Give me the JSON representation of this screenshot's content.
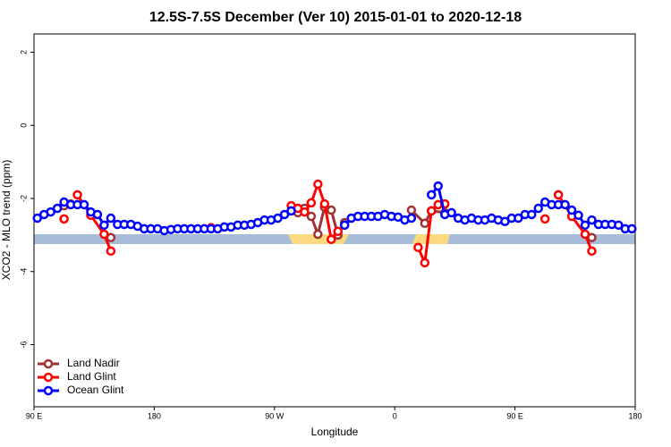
{
  "chart_data": {
    "type": "line",
    "title": "12.5S-7.5S December (Ver 10)   2015-01-01 to 2020-12-18",
    "xlabel": "Longitude",
    "ylabel": "XCO2 - MLO trend (ppm)",
    "xlim": [
      90,
      540
    ],
    "ylim": [
      -7.7,
      2.5
    ],
    "xticks": [
      {
        "value": 90,
        "label": "90 E"
      },
      180,
      {
        "value": 270,
        "label": "90 W"
      },
      {
        "value": 360,
        "label": "0"
      },
      {
        "value": 450,
        "label": "90 E"
      },
      {
        "value": 540,
        "label": "180"
      }
    ],
    "yticks": [
      2,
      0,
      -2,
      -4,
      -6
    ],
    "legend": "bottom-left",
    "series": [
      {
        "name": "Land Nadir",
        "color": "#a03232",
        "x": [
          112.5,
          117.5,
          132.5,
          147.5,
          222.5,
          287.5,
          292.5,
          297.5,
          302.5,
          307.5,
          312.5,
          317.5,
          322.5,
          352.5,
          372.5,
          382.5,
          387.5,
          397.5,
          452.5,
          507.5
        ],
        "values": [
          -2.2,
          -2.15,
          null,
          -3.07,
          null,
          -2.39,
          -2.27,
          -2.49,
          -2.98,
          -2.24,
          -2.32,
          -3.0,
          -2.66,
          null,
          -2.32,
          -2.68,
          -2.34,
          -2.39,
          null,
          -3.07
        ]
      },
      {
        "name": "Land Glint",
        "color": "#ff0000",
        "x": [
          112.5,
          117.5,
          122.5,
          132.5,
          142.5,
          147.5,
          182.5,
          222.5,
          252.5,
          282.5,
          287.5,
          292.5,
          297.5,
          302.5,
          307.5,
          312.5,
          317.5,
          322.5,
          352.5,
          377.5,
          382.5,
          387.5,
          392.5,
          397.5,
          432.5,
          472.5,
          477.5,
          482.5,
          492.5,
          502.5,
          507.5
        ],
        "values": [
          -2.56,
          null,
          -1.9,
          -2.46,
          -2.98,
          -3.44,
          null,
          -2.8,
          null,
          -2.2,
          -2.27,
          -2.37,
          -2.12,
          -1.61,
          -2.15,
          -3.12,
          -2.9,
          -2.73,
          null,
          -3.34,
          -3.76,
          -2.34,
          -2.17,
          -2.15,
          null,
          -2.56,
          null,
          -1.9,
          -2.49,
          -2.98,
          -3.44
        ]
      },
      {
        "name": "Ocean Glint",
        "color": "#0000ff",
        "x": [
          92.5,
          97.5,
          102.5,
          107.5,
          112.5,
          117.5,
          122.5,
          127.5,
          132.5,
          137.5,
          142.5,
          147.5,
          152.5,
          157.5,
          162.5,
          167.5,
          172.5,
          177.5,
          182.5,
          187.5,
          192.5,
          197.5,
          202.5,
          207.5,
          212.5,
          217.5,
          222.5,
          227.5,
          232.5,
          237.5,
          242.5,
          247.5,
          252.5,
          257.5,
          262.5,
          267.5,
          272.5,
          277.5,
          282.5,
          287.5,
          292.5,
          297.5,
          302.5,
          307.5,
          312.5,
          317.5,
          322.5,
          327.5,
          332.5,
          337.5,
          342.5,
          347.5,
          352.5,
          357.5,
          362.5,
          367.5,
          372.5,
          377.5,
          382.5,
          387.5,
          392.5,
          397.5,
          402.5,
          407.5,
          412.5,
          417.5,
          422.5,
          427.5,
          432.5,
          437.5,
          442.5,
          447.5,
          452.5,
          457.5,
          462.5,
          467.5,
          472.5,
          477.5,
          482.5,
          487.5,
          492.5,
          497.5,
          502.5,
          507.5,
          512.5,
          517.5,
          522.5,
          527.5,
          532.5,
          537.5
        ],
        "values": [
          -2.54,
          -2.44,
          -2.37,
          -2.27,
          -2.1,
          -2.17,
          -2.17,
          -2.17,
          -2.37,
          -2.44,
          -2.73,
          -2.54,
          -2.71,
          -2.71,
          -2.71,
          -2.76,
          -2.83,
          -2.83,
          -2.83,
          -2.88,
          -2.85,
          -2.83,
          -2.83,
          -2.83,
          -2.83,
          -2.83,
          -2.83,
          -2.83,
          -2.78,
          -2.78,
          -2.73,
          -2.73,
          -2.71,
          -2.66,
          -2.59,
          -2.59,
          -2.54,
          -2.44,
          -2.34,
          null,
          null,
          null,
          null,
          null,
          null,
          null,
          -2.73,
          -2.54,
          -2.49,
          -2.49,
          -2.49,
          -2.49,
          -2.44,
          -2.49,
          -2.51,
          -2.59,
          -2.54,
          null,
          null,
          -1.9,
          -1.66,
          -2.44,
          -2.39,
          -2.54,
          -2.59,
          -2.54,
          -2.59,
          -2.59,
          -2.54,
          -2.59,
          -2.63,
          -2.54,
          -2.54,
          -2.44,
          -2.44,
          -2.27,
          -2.1,
          -2.17,
          -2.17,
          -2.17,
          -2.32,
          -2.46,
          -2.73,
          -2.59,
          -2.71,
          -2.71,
          -2.71,
          -2.73,
          -2.83,
          -2.83
        ]
      }
    ]
  }
}
